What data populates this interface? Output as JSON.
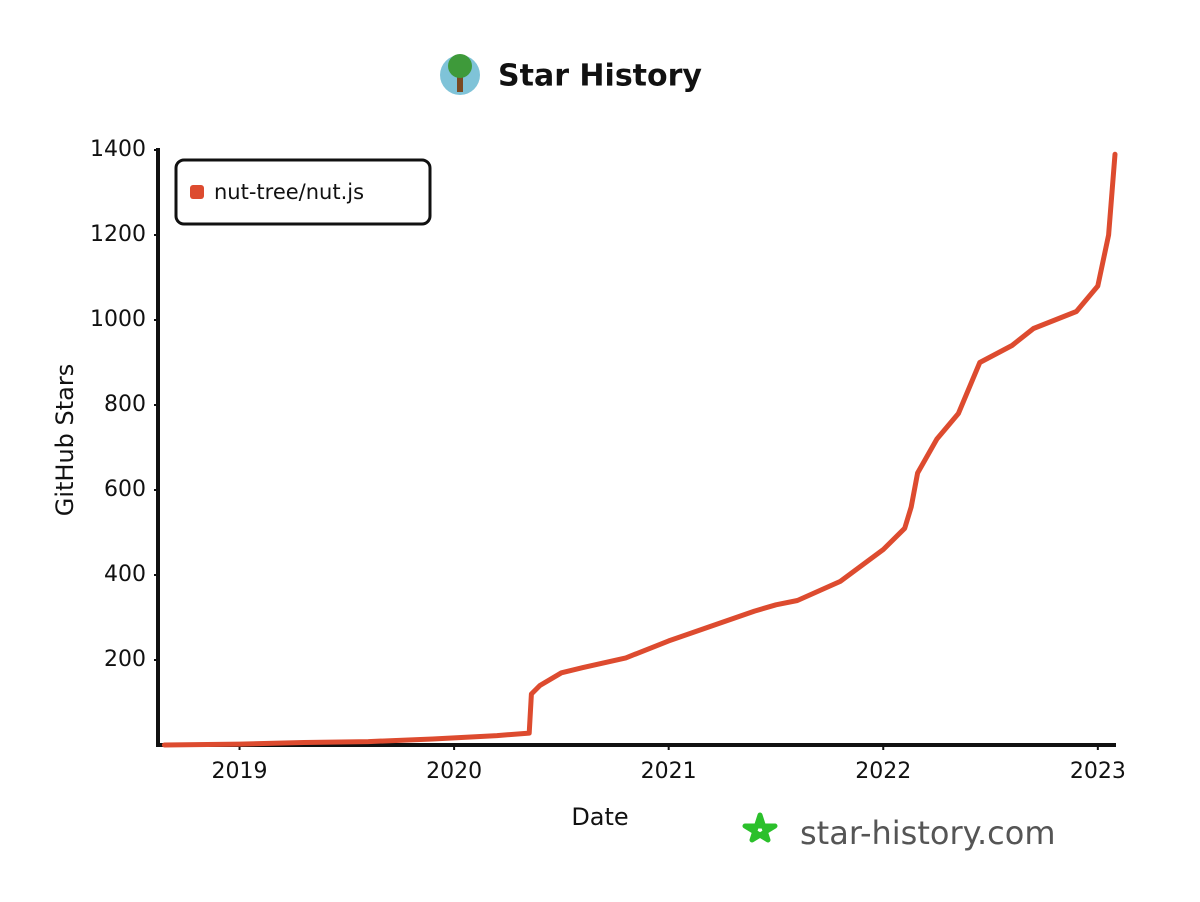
{
  "chart_data": {
    "type": "line",
    "title": "Star History",
    "xlabel": "Date",
    "ylabel": "GitHub Stars",
    "watermark": "star-history.com",
    "x": [
      2018.65,
      2019.0,
      2019.3,
      2019.6,
      2019.9,
      2020.2,
      2020.35,
      2020.36,
      2020.4,
      2020.5,
      2020.6,
      2020.8,
      2021.0,
      2021.2,
      2021.4,
      2021.5,
      2021.6,
      2021.8,
      2022.0,
      2022.1,
      2022.13,
      2022.16,
      2022.25,
      2022.35,
      2022.45,
      2022.6,
      2022.7,
      2022.9,
      2023.0,
      2023.05,
      2023.08
    ],
    "series": [
      {
        "name": "nut-tree/nut.js",
        "color": "#dd4b2f",
        "values": [
          0,
          2,
          6,
          8,
          14,
          22,
          28,
          120,
          140,
          170,
          182,
          205,
          245,
          280,
          315,
          330,
          340,
          385,
          460,
          510,
          560,
          640,
          720,
          780,
          900,
          940,
          980,
          1020,
          1080,
          1200,
          1390
        ]
      }
    ],
    "xlim": [
      2018.62,
      2023.08
    ],
    "xticks": [
      2019,
      2020,
      2021,
      2022,
      2023
    ],
    "ylim": [
      0,
      1400
    ],
    "yticks": [
      200,
      400,
      600,
      800,
      1000,
      1200,
      1400
    ],
    "legend": "top-left",
    "grid": false
  }
}
